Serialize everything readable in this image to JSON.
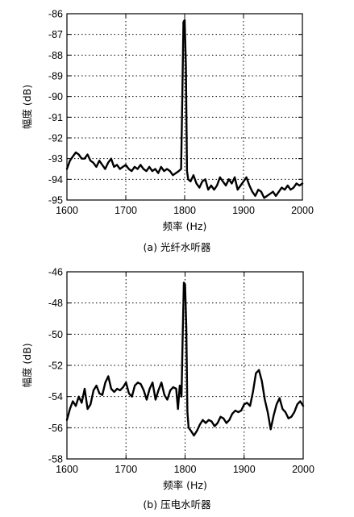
{
  "chart_data": [
    {
      "type": "line",
      "caption": "(a) 光纤水听器",
      "xlabel": "频率 (Hz)",
      "ylabel": "幅度 (dB)",
      "xlim": [
        1600,
        2000
      ],
      "ylim": [
        -95,
        -86
      ],
      "xticks": [
        "1600",
        "1700",
        "1800",
        "1900",
        "2000"
      ],
      "yticks": [
        "-86",
        "-87",
        "-88",
        "-89",
        "-90",
        "-91",
        "-92",
        "-93",
        "-94",
        "-95"
      ],
      "grid": "dotted",
      "x": [
        1600,
        1605,
        1610,
        1615,
        1620,
        1625,
        1630,
        1635,
        1640,
        1645,
        1650,
        1655,
        1660,
        1665,
        1670,
        1675,
        1680,
        1685,
        1690,
        1695,
        1700,
        1705,
        1710,
        1715,
        1720,
        1725,
        1730,
        1735,
        1740,
        1745,
        1750,
        1755,
        1760,
        1765,
        1770,
        1775,
        1780,
        1785,
        1790,
        1794,
        1796,
        1798,
        1800,
        1802,
        1804,
        1806,
        1810,
        1815,
        1820,
        1825,
        1830,
        1835,
        1840,
        1845,
        1850,
        1855,
        1860,
        1865,
        1870,
        1875,
        1880,
        1885,
        1890,
        1895,
        1900,
        1905,
        1910,
        1915,
        1920,
        1925,
        1930,
        1935,
        1940,
        1945,
        1950,
        1955,
        1960,
        1965,
        1970,
        1975,
        1980,
        1985,
        1990,
        1995,
        2000
      ],
      "y": [
        -93.5,
        -93.1,
        -92.9,
        -92.7,
        -92.8,
        -93.0,
        -93.0,
        -92.8,
        -93.1,
        -93.2,
        -93.4,
        -93.1,
        -93.3,
        -93.5,
        -93.2,
        -93.0,
        -93.4,
        -93.3,
        -93.5,
        -93.4,
        -93.3,
        -93.5,
        -93.6,
        -93.4,
        -93.5,
        -93.3,
        -93.5,
        -93.6,
        -93.4,
        -93.6,
        -93.5,
        -93.7,
        -93.4,
        -93.6,
        -93.5,
        -93.6,
        -93.8,
        -93.7,
        -93.6,
        -93.5,
        -90.0,
        -86.4,
        -86.3,
        -88.5,
        -93.6,
        -94.0,
        -94.1,
        -93.8,
        -94.2,
        -94.4,
        -94.1,
        -94.0,
        -94.5,
        -94.3,
        -94.5,
        -94.3,
        -93.9,
        -94.1,
        -94.3,
        -94.0,
        -94.2,
        -93.9,
        -94.5,
        -94.3,
        -94.1,
        -93.9,
        -94.3,
        -94.6,
        -94.8,
        -94.5,
        -94.6,
        -94.9,
        -94.8,
        -94.7,
        -94.6,
        -94.8,
        -94.6,
        -94.4,
        -94.5,
        -94.3,
        -94.5,
        -94.4,
        -94.2,
        -94.3,
        -94.2
      ]
    },
    {
      "type": "line",
      "caption": "(b) 压电水听器",
      "xlabel": "频率 (Hz)",
      "ylabel": "幅度 (dB)",
      "xlim": [
        1600,
        2000
      ],
      "ylim": [
        -58,
        -46
      ],
      "xticks": [
        "1600",
        "1700",
        "1800",
        "1900",
        "2000"
      ],
      "yticks": [
        "-46",
        "-48",
        "-50",
        "-52",
        "-54",
        "-56",
        "-58"
      ],
      "grid": "dotted",
      "x": [
        1600,
        1605,
        1610,
        1615,
        1620,
        1625,
        1630,
        1635,
        1640,
        1645,
        1650,
        1655,
        1660,
        1665,
        1670,
        1675,
        1680,
        1685,
        1690,
        1695,
        1700,
        1705,
        1710,
        1715,
        1720,
        1725,
        1730,
        1735,
        1740,
        1745,
        1750,
        1755,
        1760,
        1765,
        1770,
        1775,
        1780,
        1785,
        1788,
        1791,
        1794,
        1796,
        1798,
        1800,
        1802,
        1804,
        1806,
        1810,
        1815,
        1820,
        1825,
        1830,
        1835,
        1840,
        1845,
        1850,
        1855,
        1860,
        1865,
        1870,
        1875,
        1880,
        1885,
        1890,
        1895,
        1900,
        1905,
        1910,
        1915,
        1920,
        1925,
        1930,
        1935,
        1940,
        1945,
        1950,
        1955,
        1960,
        1965,
        1970,
        1975,
        1980,
        1985,
        1990,
        1995,
        2000
      ],
      "y": [
        -55.5,
        -54.8,
        -54.3,
        -54.6,
        -54.0,
        -54.4,
        -53.5,
        -54.8,
        -54.5,
        -53.6,
        -53.3,
        -53.8,
        -53.9,
        -53.1,
        -52.7,
        -53.5,
        -53.7,
        -53.5,
        -53.6,
        -53.4,
        -53.1,
        -53.8,
        -54.0,
        -53.3,
        -53.1,
        -53.2,
        -53.6,
        -54.2,
        -53.5,
        -53.1,
        -54.2,
        -53.6,
        -53.1,
        -53.9,
        -54.2,
        -53.6,
        -53.4,
        -53.5,
        -54.8,
        -53.3,
        -54.0,
        -50.0,
        -46.7,
        -46.8,
        -49.5,
        -55.0,
        -56.0,
        -56.2,
        -56.5,
        -56.2,
        -55.8,
        -55.5,
        -55.7,
        -55.5,
        -55.6,
        -55.9,
        -55.7,
        -55.3,
        -55.4,
        -55.7,
        -55.5,
        -55.1,
        -54.9,
        -55.0,
        -54.9,
        -54.5,
        -54.4,
        -54.6,
        -53.7,
        -52.5,
        -52.3,
        -53.0,
        -54.2,
        -55.0,
        -56.1,
        -55.2,
        -54.5,
        -54.1,
        -54.8,
        -55.0,
        -55.4,
        -55.3,
        -55.0,
        -54.5,
        -54.3,
        -54.6
      ]
    }
  ]
}
